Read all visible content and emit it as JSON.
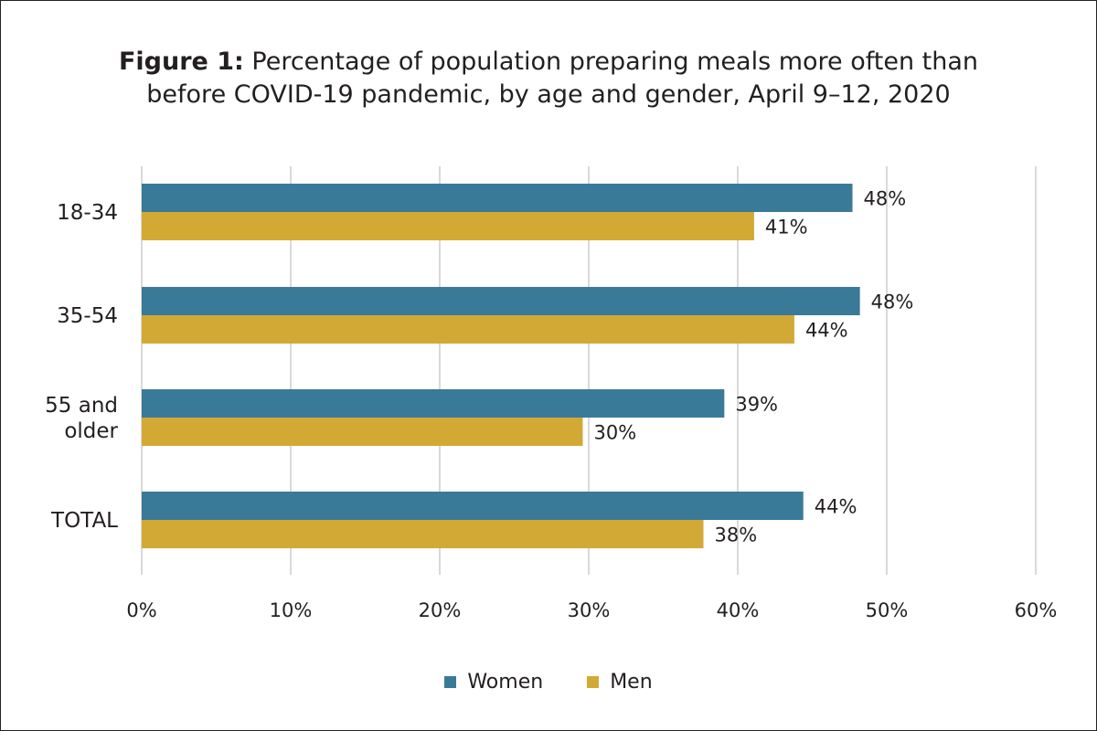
{
  "title": {
    "lead": "Figure 1:",
    "line1_rest": " Percentage of population preparing meals more often than",
    "line2": "before COVID-19 pandemic, by age and gender, April 9–12, 2020"
  },
  "colors": {
    "women": "#3a7a99",
    "men": "#d3a936",
    "grid": "#d9d9d9",
    "text": "#231f20"
  },
  "chart_data": {
    "type": "bar",
    "orientation": "horizontal",
    "categories": [
      [
        "18-34"
      ],
      [
        "35-54"
      ],
      [
        "55 and",
        "older"
      ],
      [
        "TOTAL"
      ]
    ],
    "series": [
      {
        "name": "Women",
        "values": [
          47.7,
          48.2,
          39.1,
          44.4
        ],
        "labels": [
          "48%",
          "48%",
          "39%",
          "44%"
        ]
      },
      {
        "name": "Men",
        "values": [
          41.1,
          43.8,
          29.6,
          37.7
        ],
        "labels": [
          "41%",
          "44%",
          "30%",
          "38%"
        ]
      }
    ],
    "xlim": [
      0,
      60
    ],
    "xticks": [
      0,
      10,
      20,
      30,
      40,
      50,
      60
    ],
    "xtick_labels": [
      "0%",
      "10%",
      "20%",
      "30%",
      "40%",
      "50%",
      "60%"
    ],
    "grid": "vertical",
    "legend_position": "bottom"
  }
}
